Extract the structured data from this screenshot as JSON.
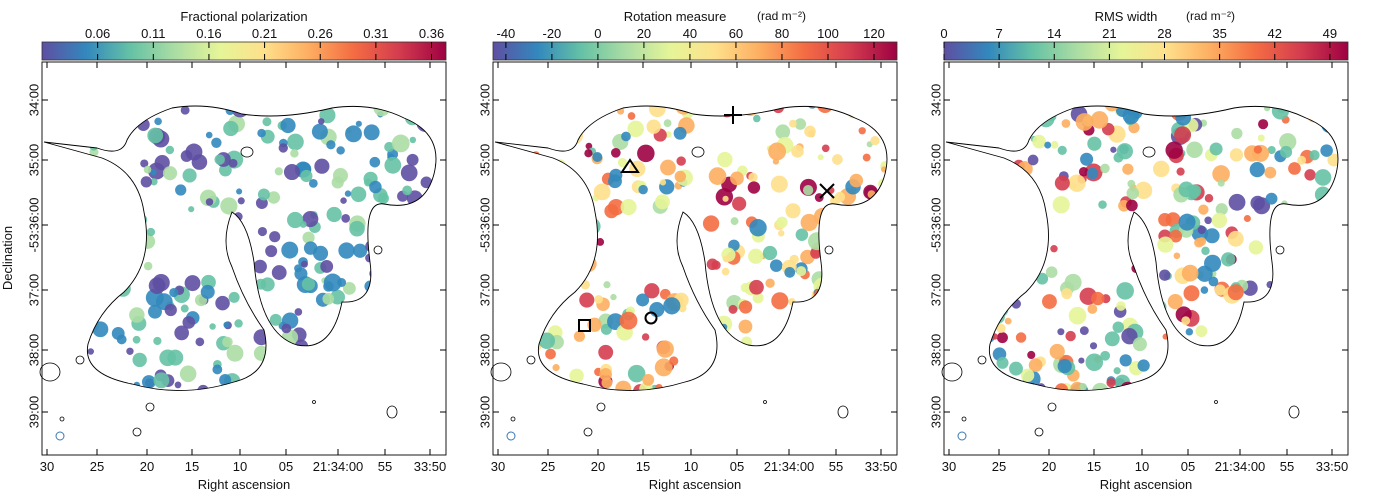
{
  "panels": [
    {
      "colorbar": {
        "label": "Fractional polarization",
        "range": [
          0.01,
          0.373
        ],
        "ticks": [
          0.06,
          0.11,
          0.16,
          0.21,
          0.26,
          0.31,
          0.36
        ]
      },
      "y_axis": {
        "label": "Declination",
        "ticks": [
          "34:00",
          "35:00",
          "-53:36:00",
          "37:00",
          "38:00",
          "39:00"
        ]
      },
      "x_axis": {
        "label": "Right ascension",
        "ticks": [
          "30",
          "25",
          "20",
          "15",
          "10",
          "05",
          "21:34:00",
          "55",
          "33:50"
        ]
      }
    },
    {
      "colorbar": {
        "label": "Rotation measure",
        "unit": "(rad m⁻²)",
        "range": [
          -45.6,
          130
        ],
        "ticks": [
          -40,
          -20,
          0,
          20,
          40,
          60,
          80,
          100,
          120
        ]
      },
      "y_axis": {
        "ticks": [
          "34:00",
          "35:00",
          "-53:36:00",
          "37:00",
          "38:00",
          "39:00"
        ]
      },
      "x_axis": {
        "label": "Right ascension",
        "ticks": [
          "30",
          "25",
          "20",
          "15",
          "10",
          "05",
          "21:34:00",
          "55",
          "33:50"
        ]
      }
    },
    {
      "colorbar": {
        "label": "RMS width",
        "unit": "(rad m⁻²)",
        "range": [
          0,
          51.3
        ],
        "ticks": [
          0,
          7,
          14,
          21,
          28,
          35,
          42,
          49
        ]
      },
      "y_axis": {
        "ticks": [
          "34:00",
          "35:00",
          "-53:36:00",
          "37:00",
          "38:00",
          "39:00"
        ]
      },
      "x_axis": {
        "label": "Right ascension",
        "ticks": [
          "30",
          "25",
          "20",
          "15",
          "10",
          "05",
          "21:34:00",
          "55",
          "33:50"
        ]
      }
    }
  ]
}
